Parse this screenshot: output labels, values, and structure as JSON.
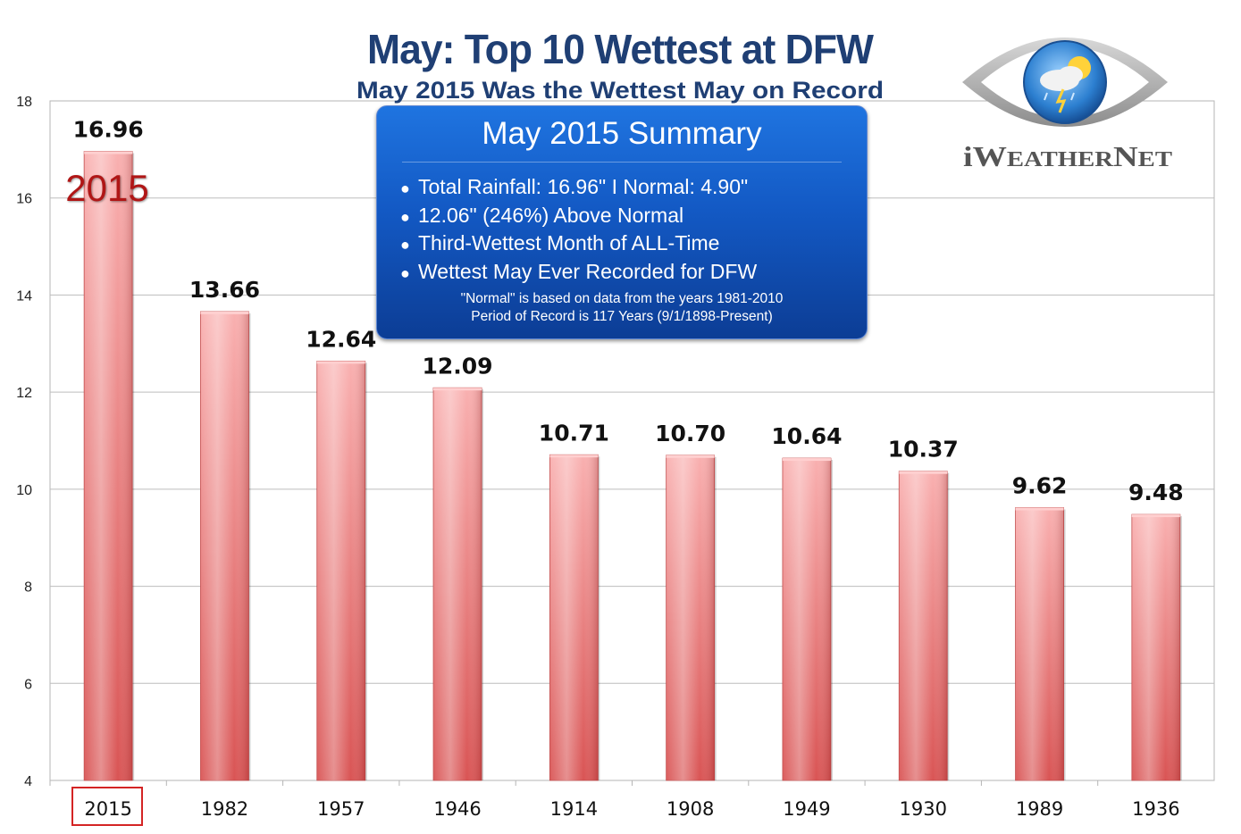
{
  "title": "May: Top 10 Wettest at DFW",
  "subtitle": "May 2015 Was the Wettest May on Record",
  "highlight_label": "2015",
  "logo": {
    "text": "iWeatherNet",
    "icon": "eye-weather-icon"
  },
  "summary": {
    "title": "May 2015 Summary",
    "bullets": [
      "Total Rainfall: 16.96\"  I  Normal: 4.90\"",
      "12.06\" (246%) Above Normal",
      "Third-Wettest Month of ALL-Time",
      "Wettest May Ever Recorded for DFW"
    ],
    "notes": [
      "\"Normal\" is based on data from the years 1981-2010",
      "Period of Record is 117 Years (9/1/1898-Present)"
    ]
  },
  "colors": {
    "title": "#1f3f74",
    "bar_top": "#f7a3a3",
    "bar_bottom": "#d85050",
    "highlight": "#b01616",
    "box": "#1359c4"
  },
  "chart_data": {
    "type": "bar",
    "categories": [
      "2015",
      "1982",
      "1957",
      "1946",
      "1914",
      "1908",
      "1949",
      "1930",
      "1989",
      "1936"
    ],
    "values": [
      16.96,
      13.66,
      12.64,
      12.09,
      10.71,
      10.7,
      10.64,
      10.37,
      9.62,
      9.48
    ],
    "value_labels": [
      "16.96",
      "13.66",
      "12.64",
      "12.09",
      "10.71",
      "10.70",
      "10.64",
      "10.37",
      "9.62",
      "9.48"
    ],
    "ylim": [
      4,
      18
    ],
    "yticks": [
      4,
      6,
      8,
      10,
      12,
      14,
      16,
      18
    ],
    "grid": true,
    "highlight_category": "2015",
    "xlabel": "",
    "ylabel": ""
  }
}
